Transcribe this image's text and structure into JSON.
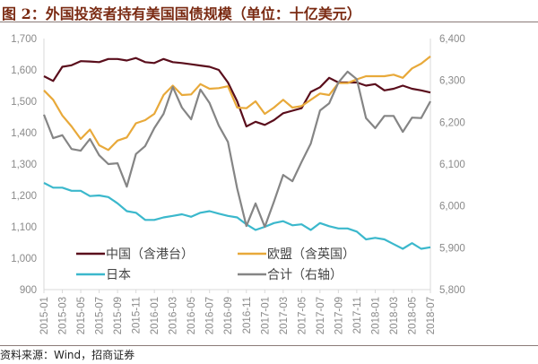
{
  "title": "图 2：外国投资者持有美国国债规模（单位：十亿美元）",
  "source": "资料来源：Wind，招商证券",
  "chart_data": {
    "type": "line",
    "title": "图 2：外国投资者持有美国国债规模（单位：十亿美元）",
    "x": [
      "2015-01",
      "2015-02",
      "2015-03",
      "2015-04",
      "2015-05",
      "2015-06",
      "2015-07",
      "2015-08",
      "2015-09",
      "2015-10",
      "2015-11",
      "2015-12",
      "2016-01",
      "2016-02",
      "2016-03",
      "2016-04",
      "2016-05",
      "2016-06",
      "2016-07",
      "2016-08",
      "2016-09",
      "2016-10",
      "2016-11",
      "2016-12",
      "2017-01",
      "2017-02",
      "2017-03",
      "2017-04",
      "2017-05",
      "2017-06",
      "2017-07",
      "2017-08",
      "2017-09",
      "2017-10",
      "2017-11",
      "2017-12",
      "2018-01",
      "2018-02",
      "2018-03",
      "2018-04",
      "2018-05",
      "2018-06",
      "2018-07"
    ],
    "x_tick_labels": [
      "2015-01",
      "2015-03",
      "2015-05",
      "2015-07",
      "2015-09",
      "2015-11",
      "2016-01",
      "2016-03",
      "2016-05",
      "2016-07",
      "2016-09",
      "2016-11",
      "2017-01",
      "2017-03",
      "2017-05",
      "2017-07",
      "2017-09",
      "2017-11",
      "2018-01",
      "2018-03",
      "2018-05",
      "2018-07"
    ],
    "y_left": {
      "range": [
        900,
        1700
      ],
      "ticks": [
        "900",
        "1,000",
        "1,100",
        "1,200",
        "1,300",
        "1,400",
        "1,500",
        "1,600",
        "1,700"
      ]
    },
    "y_right": {
      "range": [
        5800,
        6400
      ],
      "ticks": [
        "5,800",
        "5,900",
        "6,000",
        "6,100",
        "6,200",
        "6,300",
        "6,400"
      ]
    },
    "grid": false,
    "legend_position": "bottom-left inside",
    "series": [
      {
        "name": "中国（含港台）",
        "axis": "left",
        "color": "#5a0e1c",
        "values": [
          1580,
          1565,
          1610,
          1615,
          1628,
          1627,
          1625,
          1635,
          1635,
          1630,
          1638,
          1625,
          1622,
          1635,
          1625,
          1622,
          1618,
          1614,
          1610,
          1600,
          1560,
          1500,
          1420,
          1435,
          1425,
          1440,
          1462,
          1470,
          1478,
          1530,
          1545,
          1575,
          1560,
          1560,
          1560,
          1550,
          1555,
          1535,
          1540,
          1550,
          1540,
          1535,
          1528
        ]
      },
      {
        "name": "欧盟（含英国）",
        "axis": "left",
        "color": "#e8a93a",
        "values": [
          1535,
          1505,
          1455,
          1420,
          1380,
          1410,
          1360,
          1345,
          1375,
          1385,
          1430,
          1440,
          1460,
          1520,
          1550,
          1520,
          1522,
          1555,
          1540,
          1542,
          1548,
          1480,
          1478,
          1500,
          1460,
          1480,
          1505,
          1480,
          1485,
          1505,
          1525,
          1520,
          1558,
          1558,
          1570,
          1580,
          1580,
          1580,
          1585,
          1575,
          1605,
          1620,
          1643
        ]
      },
      {
        "name": "日本",
        "axis": "left",
        "color": "#3bb8cc",
        "values": [
          1240,
          1225,
          1225,
          1215,
          1215,
          1198,
          1200,
          1195,
          1175,
          1150,
          1145,
          1122,
          1122,
          1130,
          1135,
          1140,
          1132,
          1145,
          1150,
          1142,
          1135,
          1130,
          1108,
          1090,
          1100,
          1112,
          1118,
          1105,
          1108,
          1090,
          1112,
          1102,
          1095,
          1095,
          1085,
          1060,
          1065,
          1060,
          1045,
          1030,
          1048,
          1030,
          1035
        ]
      },
      {
        "name": "合计（右轴）",
        "axis": "right",
        "color": "#858585",
        "values": [
          6218,
          6162,
          6169,
          6136,
          6132,
          6160,
          6121,
          6100,
          6102,
          6046,
          6124,
          6143,
          6186,
          6220,
          6284,
          6235,
          6207,
          6278,
          6246,
          6192,
          6153,
          6042,
          5952,
          6006,
          5950,
          6010,
          6074,
          6059,
          6105,
          6149,
          6228,
          6245,
          6295,
          6321,
          6303,
          6210,
          6186,
          6215,
          6215,
          6177,
          6211,
          6210,
          6250
        ]
      }
    ]
  }
}
